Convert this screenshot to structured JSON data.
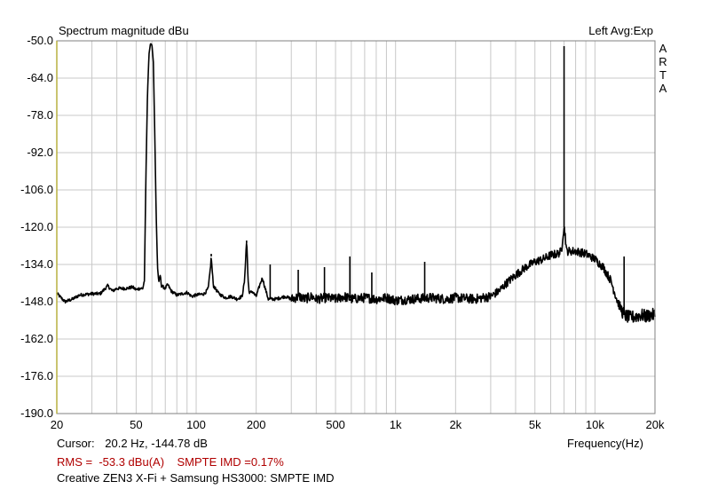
{
  "chart_data": {
    "type": "line",
    "title": "Spectrum magnitude dBu",
    "top_right_label": "Left  Avg:Exp",
    "brand_letters": [
      "A",
      "R",
      "T",
      "A"
    ],
    "xlabel": "Frequency(Hz)",
    "x_scale": "log",
    "xlim": [
      20,
      20000
    ],
    "ylim": [
      -190,
      -50
    ],
    "x_ticks": [
      20,
      50,
      100,
      200,
      500,
      1000,
      2000,
      5000,
      10000,
      20000
    ],
    "x_tick_labels": [
      "20",
      "50",
      "100",
      "200",
      "500",
      "1k",
      "2k",
      "5k",
      "10k",
      "20k"
    ],
    "y_ticks": [
      -50,
      -64,
      -78,
      -92,
      -106,
      -120,
      -134,
      -148,
      -162,
      -176,
      -190
    ],
    "y_tick_labels": [
      "-50.0",
      "-64.0",
      "-78.0",
      "-92.0",
      "-106.0",
      "-120.0",
      "-134.0",
      "-148.0",
      "-162.0",
      "-176.0",
      "-190.0"
    ],
    "grid": true,
    "series": [
      {
        "points": [
          [
            20,
            -144.8
          ],
          [
            21,
            -146.5
          ],
          [
            22,
            -148
          ],
          [
            24,
            -147
          ],
          [
            26,
            -145.5
          ],
          [
            30,
            -145
          ],
          [
            33,
            -145
          ],
          [
            35,
            -143
          ],
          [
            36,
            -142
          ],
          [
            38,
            -144
          ],
          [
            40,
            -143
          ],
          [
            45,
            -143
          ],
          [
            48,
            -142.5
          ],
          [
            50,
            -143.5
          ],
          [
            52,
            -143
          ],
          [
            54,
            -143
          ],
          [
            55,
            -140
          ],
          [
            56,
            -100
          ],
          [
            57,
            -70
          ],
          [
            58,
            -55
          ],
          [
            59,
            -51
          ],
          [
            60,
            -51.5
          ],
          [
            61,
            -58
          ],
          [
            62,
            -85
          ],
          [
            63,
            -115
          ],
          [
            64,
            -135
          ],
          [
            65,
            -141
          ],
          [
            66,
            -138
          ],
          [
            67,
            -142
          ],
          [
            70,
            -143
          ],
          [
            72,
            -141.5
          ],
          [
            75,
            -144
          ],
          [
            80,
            -145.5
          ],
          [
            85,
            -145
          ],
          [
            90,
            -144.5
          ],
          [
            95,
            -146
          ],
          [
            100,
            -145.5
          ],
          [
            110,
            -145
          ],
          [
            115,
            -143
          ],
          [
            118,
            -135
          ],
          [
            119,
            -131
          ],
          [
            120,
            -135
          ],
          [
            122,
            -142
          ],
          [
            130,
            -145
          ],
          [
            140,
            -146.5
          ],
          [
            150,
            -146
          ],
          [
            160,
            -147
          ],
          [
            170,
            -146
          ],
          [
            175,
            -140
          ],
          [
            178,
            -128
          ],
          [
            179,
            -126
          ],
          [
            180,
            -128
          ],
          [
            182,
            -140
          ],
          [
            185,
            -145
          ],
          [
            190,
            -144
          ],
          [
            200,
            -146
          ],
          [
            210,
            -141
          ],
          [
            215,
            -139
          ],
          [
            220,
            -142
          ],
          [
            230,
            -147
          ],
          [
            250,
            -147
          ],
          [
            280,
            -146
          ],
          [
            300,
            -147
          ],
          [
            330,
            -146
          ],
          [
            350,
            -147
          ],
          [
            380,
            -146
          ],
          [
            400,
            -147
          ],
          [
            450,
            -146.5
          ],
          [
            500,
            -147
          ],
          [
            550,
            -146
          ],
          [
            600,
            -147
          ],
          [
            700,
            -146.5
          ],
          [
            800,
            -147
          ],
          [
            900,
            -146.5
          ],
          [
            1000,
            -147.5
          ],
          [
            1200,
            -147
          ],
          [
            1500,
            -146.5
          ],
          [
            1800,
            -147
          ],
          [
            2000,
            -146.5
          ],
          [
            2500,
            -147
          ],
          [
            3000,
            -146
          ],
          [
            3300,
            -144
          ],
          [
            3600,
            -141
          ],
          [
            4000,
            -138
          ],
          [
            4500,
            -135
          ],
          [
            5000,
            -133
          ],
          [
            5500,
            -132
          ],
          [
            6000,
            -130.5
          ],
          [
            6500,
            -130
          ],
          [
            6800,
            -129
          ],
          [
            6900,
            -123
          ],
          [
            7000,
            -120
          ],
          [
            7100,
            -123
          ],
          [
            7200,
            -129
          ],
          [
            8000,
            -129
          ],
          [
            9000,
            -130
          ],
          [
            10000,
            -132
          ],
          [
            11000,
            -135
          ],
          [
            12000,
            -140
          ],
          [
            13000,
            -148
          ],
          [
            14000,
            -153
          ],
          [
            15000,
            -154
          ],
          [
            16000,
            -153.5
          ],
          [
            17000,
            -153
          ],
          [
            18000,
            -153.5
          ],
          [
            19000,
            -153
          ],
          [
            20000,
            -153
          ]
        ]
      }
    ],
    "spikes": [
      {
        "x": 7000,
        "y": -52
      },
      {
        "x": 119,
        "y": -130
      },
      {
        "x": 179,
        "y": -125
      },
      {
        "x": 14000,
        "y": -131
      },
      {
        "x": 590,
        "y": -131
      },
      {
        "x": 1400,
        "y": -133
      },
      {
        "x": 440,
        "y": -135
      },
      {
        "x": 235,
        "y": -134
      },
      {
        "x": 325,
        "y": -136
      },
      {
        "x": 760,
        "y": -137
      }
    ]
  },
  "footer": {
    "cursor_label": "Cursor:",
    "cursor_value": "20.2 Hz, -144.78 dB",
    "rms": "RMS =  -53.3 dBu(A)    SMPTE IMD =0.17%",
    "description": "Creative ZEN3 X-Fi + Samsung HS3000: SMPTE IMD"
  }
}
